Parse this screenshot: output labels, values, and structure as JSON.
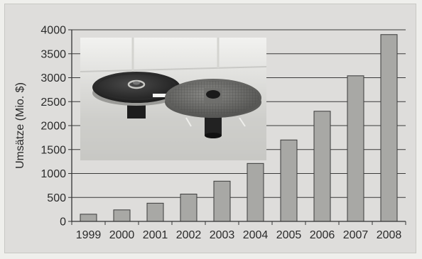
{
  "chart_data": {
    "type": "bar",
    "categories": [
      "1999",
      "2000",
      "2001",
      "2002",
      "2003",
      "2004",
      "2005",
      "2006",
      "2007",
      "2008"
    ],
    "values": [
      150,
      240,
      380,
      570,
      840,
      1210,
      1700,
      2300,
      3040,
      3900
    ],
    "ylabel": "Umsätze (Mio. $)",
    "xlabel": "",
    "ylim": [
      0,
      4000
    ],
    "yticks": [
      "0",
      "500",
      "1000",
      "1500",
      "2000",
      "2500",
      "3000",
      "3500",
      "4000"
    ],
    "grid": "horizontal",
    "bar_color": "#a8a8a5",
    "bar_edge_color": "#3a3a3a",
    "inset_image": "photograph of two circular wafer chucks on pedestals"
  }
}
